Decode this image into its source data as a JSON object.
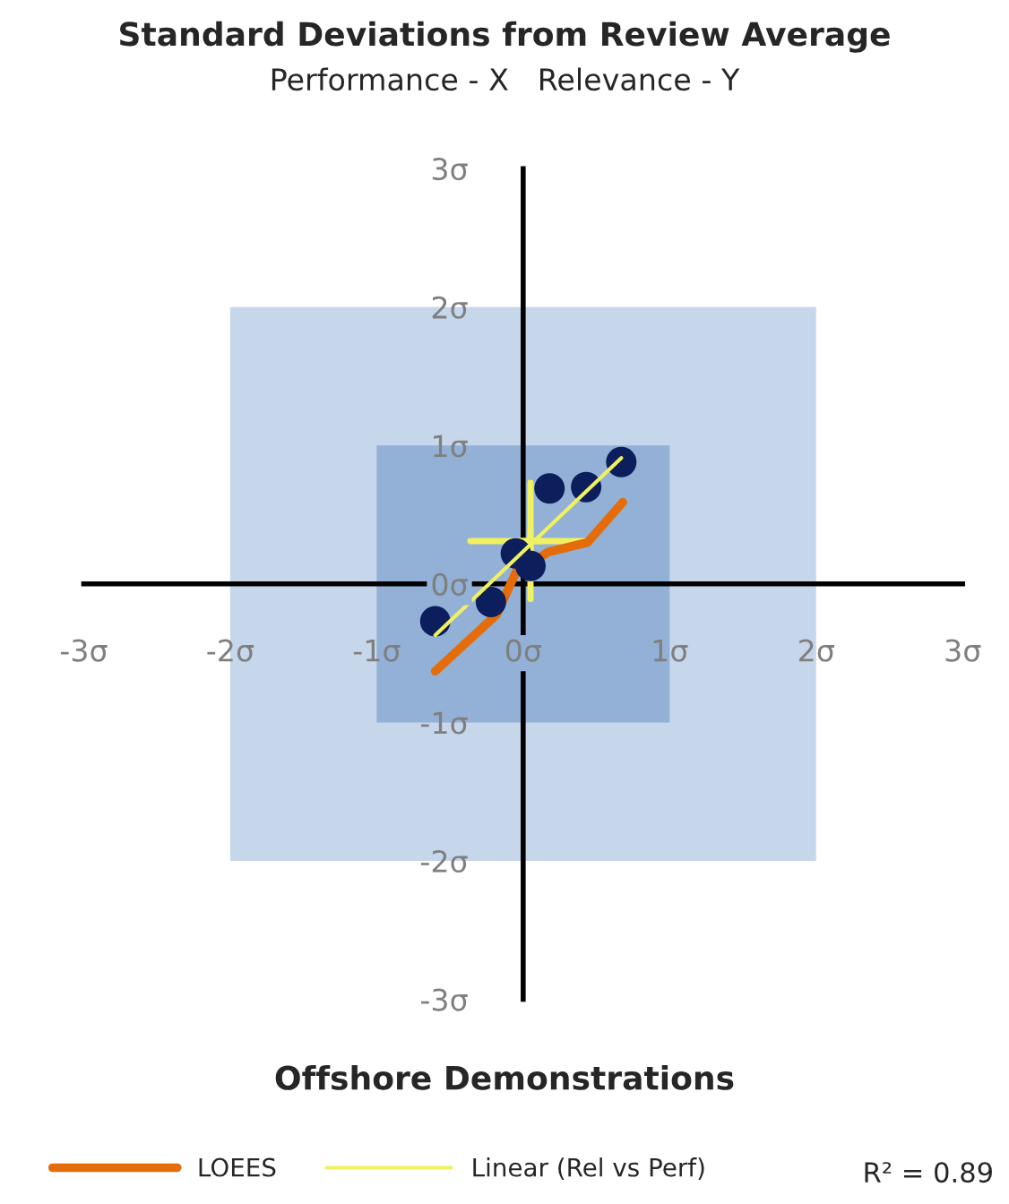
{
  "chart_data": {
    "type": "scatter",
    "title": "Standard Deviations from Review Average",
    "subtitle": "Performance - X   Relevance - Y",
    "annotations": [
      "Offshore Demonstrations",
      "R² = 0.89"
    ],
    "xlim": [
      -3,
      3
    ],
    "ylim": [
      -3,
      3
    ],
    "xticks": [
      {
        "value": -3,
        "label": "-3σ"
      },
      {
        "value": -2,
        "label": "-2σ"
      },
      {
        "value": -1,
        "label": "-1σ"
      },
      {
        "value": 0,
        "label": "0σ"
      },
      {
        "value": 1,
        "label": "1σ"
      },
      {
        "value": 2,
        "label": "2σ"
      },
      {
        "value": 3,
        "label": "3σ"
      }
    ],
    "yticks": [
      {
        "value": -3,
        "label": "-3σ"
      },
      {
        "value": -2,
        "label": "-2σ"
      },
      {
        "value": -1,
        "label": "-1σ"
      },
      {
        "value": 0,
        "label": "0σ"
      },
      {
        "value": 1,
        "label": "1σ"
      },
      {
        "value": 2,
        "label": "2σ"
      },
      {
        "value": 3,
        "label": "3σ"
      }
    ],
    "bands": [
      {
        "axis": "x",
        "from": -2,
        "to": 2,
        "color": "#c6d6eb"
      },
      {
        "axis": "x",
        "from": -1,
        "to": 1,
        "color": "#93b1d6"
      }
    ],
    "grid": false,
    "legend": "bottom",
    "series": [
      {
        "type": "scatter",
        "color": "#0c1f5c",
        "marker": "circle",
        "x": [
          -0.6,
          -0.22,
          -0.05,
          0.05,
          0.18,
          0.43,
          0.67
        ],
        "values": [
          -0.27,
          -0.13,
          0.22,
          0.13,
          0.69,
          0.7,
          0.88
        ]
      },
      {
        "type": "line",
        "name": "LOEES",
        "color": "#e46c0a",
        "marker": "none",
        "x": [
          -0.6,
          -0.18,
          -0.03,
          0.05,
          0.17,
          0.44,
          0.68
        ],
        "values": [
          -0.63,
          -0.22,
          0.13,
          0.15,
          0.23,
          0.3,
          0.59
        ]
      },
      {
        "type": "line",
        "name": "Linear (Rel vs Perf)",
        "color": "#f0f060",
        "marker": "none",
        "x": [
          -0.6,
          0.67
        ],
        "values": [
          -0.37,
          0.91
        ]
      },
      {
        "type": "scatter",
        "color": "#f0f060",
        "marker": "cross",
        "x": [
          0.05
        ],
        "values": [
          0.31
        ],
        "xerrors": [
          [
            -0.36,
            0.42
          ]
        ],
        "errors": [
          [
            -0.11,
            0.73
          ]
        ]
      }
    ]
  }
}
